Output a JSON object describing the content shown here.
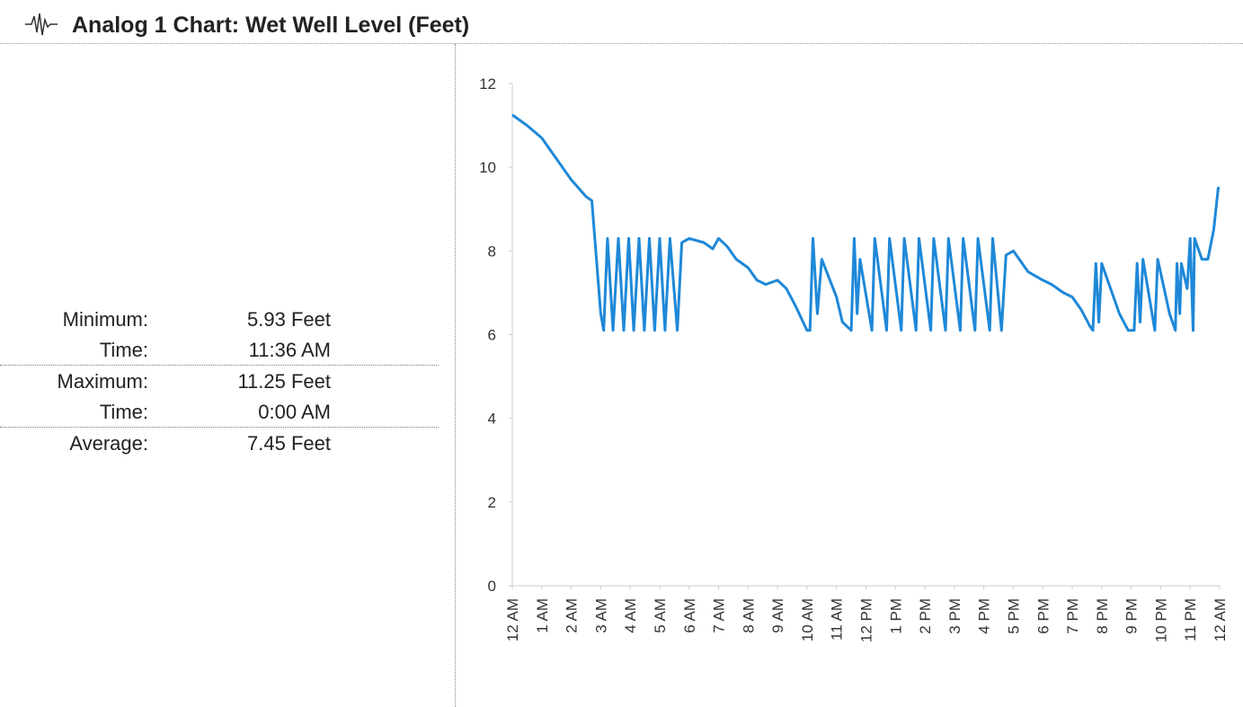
{
  "title": "Analog 1 Chart: Wet Well Level (Feet)",
  "stats": [
    {
      "label": "Minimum:",
      "value": "5.93 Feet"
    },
    {
      "label": "Time:",
      "value": "11:36 AM"
    },
    {
      "label": "Maximum:",
      "value": "11.25 Feet"
    },
    {
      "label": "Time:",
      "value": "0:00 AM"
    },
    {
      "label": "Average:",
      "value": "7.45 Feet"
    }
  ],
  "chart_data": {
    "type": "line",
    "color": "#1e88d8",
    "grid": false,
    "xlim": [
      0,
      24
    ],
    "ylim": [
      0,
      12
    ],
    "yticks": [
      0,
      2,
      4,
      6,
      8,
      10,
      12
    ],
    "xticks": [
      {
        "value": 0,
        "label": "12 AM"
      },
      {
        "value": 1,
        "label": "1 AM"
      },
      {
        "value": 2,
        "label": "2 AM"
      },
      {
        "value": 3,
        "label": "3 AM"
      },
      {
        "value": 4,
        "label": "4 AM"
      },
      {
        "value": 5,
        "label": "5 AM"
      },
      {
        "value": 6,
        "label": "6 AM"
      },
      {
        "value": 7,
        "label": "7 AM"
      },
      {
        "value": 8,
        "label": "8 AM"
      },
      {
        "value": 9,
        "label": "9 AM"
      },
      {
        "value": 10,
        "label": "10 AM"
      },
      {
        "value": 11,
        "label": "11 AM"
      },
      {
        "value": 12,
        "label": "12 PM"
      },
      {
        "value": 13,
        "label": "1 PM"
      },
      {
        "value": 14,
        "label": "2 PM"
      },
      {
        "value": 15,
        "label": "3 PM"
      },
      {
        "value": 16,
        "label": "4 PM"
      },
      {
        "value": 17,
        "label": "5 PM"
      },
      {
        "value": 18,
        "label": "6 PM"
      },
      {
        "value": 19,
        "label": "7 PM"
      },
      {
        "value": 20,
        "label": "8 PM"
      },
      {
        "value": 21,
        "label": "9 PM"
      },
      {
        "value": 22,
        "label": "10 PM"
      },
      {
        "value": 23,
        "label": "11 PM"
      },
      {
        "value": 24,
        "label": "12 AM"
      }
    ],
    "x": [
      0,
      0.5,
      1,
      1.5,
      2,
      2.5,
      2.7,
      3.0,
      3.1,
      3.23,
      3.42,
      3.6,
      3.78,
      3.95,
      4.12,
      4.3,
      4.48,
      4.65,
      4.83,
      5.0,
      5.18,
      5.35,
      5.6,
      5.75,
      6.0,
      6.5,
      6.8,
      7.0,
      7.3,
      7.6,
      8.0,
      8.3,
      8.6,
      9.0,
      9.3,
      9.6,
      9.8,
      10.0,
      10.1,
      10.2,
      10.35,
      10.5,
      11.0,
      11.2,
      11.5,
      11.6,
      11.7,
      11.8,
      12.2,
      12.3,
      12.7,
      12.8,
      13.2,
      13.3,
      13.7,
      13.8,
      14.2,
      14.3,
      14.7,
      14.8,
      15.2,
      15.3,
      15.7,
      15.8,
      16.2,
      16.3,
      16.6,
      16.75,
      17.0,
      17.5,
      18.0,
      18.3,
      18.7,
      19.0,
      19.3,
      19.6,
      19.7,
      19.8,
      19.9,
      20.0,
      20.6,
      20.9,
      21.1,
      21.2,
      21.3,
      21.4,
      21.8,
      21.9,
      22.3,
      22.5,
      22.55,
      22.65,
      22.7,
      22.9,
      23.0,
      23.1,
      23.15,
      23.4,
      23.6,
      23.8,
      23.95,
      24.0
    ],
    "values": [
      11.25,
      11.0,
      10.7,
      10.2,
      9.7,
      9.3,
      9.2,
      6.5,
      6.1,
      8.3,
      6.1,
      8.3,
      6.1,
      8.3,
      6.1,
      8.3,
      6.1,
      8.3,
      6.1,
      8.3,
      6.1,
      8.3,
      6.1,
      8.2,
      8.3,
      8.2,
      8.05,
      8.3,
      8.1,
      7.8,
      7.6,
      7.3,
      7.2,
      7.3,
      7.1,
      6.7,
      6.4,
      6.1,
      6.1,
      8.3,
      6.5,
      7.8,
      6.9,
      6.3,
      6.1,
      8.3,
      6.5,
      7.8,
      6.1,
      8.3,
      6.1,
      8.3,
      6.1,
      8.3,
      6.1,
      8.3,
      6.1,
      8.3,
      6.1,
      8.3,
      6.1,
      8.3,
      6.1,
      8.3,
      6.1,
      8.3,
      6.1,
      7.9,
      8.0,
      7.5,
      7.3,
      7.2,
      7.0,
      6.9,
      6.6,
      6.2,
      6.1,
      7.7,
      6.3,
      7.7,
      6.5,
      6.1,
      6.1,
      7.7,
      6.3,
      7.8,
      6.1,
      7.8,
      6.5,
      6.1,
      7.7,
      6.5,
      7.7,
      7.1,
      8.3,
      6.1,
      8.3,
      7.8,
      7.8,
      8.5,
      9.5,
      9.5
    ]
  }
}
